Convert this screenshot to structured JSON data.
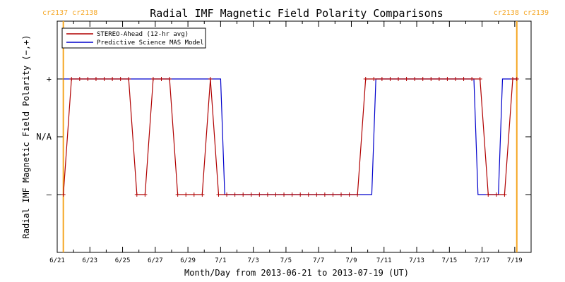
{
  "chart_data": {
    "type": "line",
    "title": "Radial IMF Magnetic Field Polarity Comparisons",
    "xlabel": "Month/Day from 2013-06-21 to 2013-07-19 (UT)",
    "ylabel": "Radial IMF Magnetic Field Polarity (−,+)",
    "xlim": [
      "2013-06-21",
      "2013-07-19"
    ],
    "x_tick_labels": [
      "6/21",
      "6/23",
      "6/25",
      "6/27",
      "6/29",
      "7/1",
      "7/3",
      "7/5",
      "7/7",
      "7/9",
      "7/11",
      "7/13",
      "7/15",
      "7/17",
      "7/19"
    ],
    "y_tick_labels": [
      {
        "value": -2,
        "label": ""
      },
      {
        "value": -1,
        "label": "–"
      },
      {
        "value": 0,
        "label": "N/A"
      },
      {
        "value": 1,
        "label": "+"
      },
      {
        "value": 2,
        "label": ""
      }
    ],
    "ylim": [
      -2,
      2
    ],
    "grid": false,
    "legend": {
      "position": "top-left"
    },
    "carrington_markers": [
      {
        "date": "2013-06-21 09:00",
        "labels": [
          "cr2137",
          "cr2138"
        ],
        "side": "left"
      },
      {
        "date": "2013-07-19 03:00",
        "labels": [
          "cr2138",
          "cr2139"
        ],
        "side": "right"
      }
    ],
    "series": [
      {
        "name": "STEREO-Ahead (12-hr avg)",
        "color": "#b00000",
        "markers": "plus",
        "points": [
          [
            "2013-06-21 09:00",
            -1
          ],
          [
            "2013-06-21 21:00",
            1
          ],
          [
            "2013-06-22 09:00",
            1
          ],
          [
            "2013-06-22 21:00",
            1
          ],
          [
            "2013-06-23 09:00",
            1
          ],
          [
            "2013-06-23 21:00",
            1
          ],
          [
            "2013-06-24 09:00",
            1
          ],
          [
            "2013-06-24 21:00",
            1
          ],
          [
            "2013-06-25 09:00",
            1
          ],
          [
            "2013-06-25 21:00",
            -1
          ],
          [
            "2013-06-26 09:00",
            -1
          ],
          [
            "2013-06-26 21:00",
            1
          ],
          [
            "2013-06-27 09:00",
            1
          ],
          [
            "2013-06-27 21:00",
            1
          ],
          [
            "2013-06-28 09:00",
            -1
          ],
          [
            "2013-06-28 21:00",
            -1
          ],
          [
            "2013-06-29 09:00",
            -1
          ],
          [
            "2013-06-29 21:00",
            -1
          ],
          [
            "2013-06-30 09:00",
            1
          ],
          [
            "2013-06-30 21:00",
            -1
          ],
          [
            "2013-07-01 09:00",
            -1
          ],
          [
            "2013-07-01 21:00",
            -1
          ],
          [
            "2013-07-02 09:00",
            -1
          ],
          [
            "2013-07-02 21:00",
            -1
          ],
          [
            "2013-07-03 09:00",
            -1
          ],
          [
            "2013-07-03 21:00",
            -1
          ],
          [
            "2013-07-04 09:00",
            -1
          ],
          [
            "2013-07-04 21:00",
            -1
          ],
          [
            "2013-07-05 09:00",
            -1
          ],
          [
            "2013-07-05 21:00",
            -1
          ],
          [
            "2013-07-06 09:00",
            -1
          ],
          [
            "2013-07-06 21:00",
            -1
          ],
          [
            "2013-07-07 09:00",
            -1
          ],
          [
            "2013-07-07 21:00",
            -1
          ],
          [
            "2013-07-08 09:00",
            -1
          ],
          [
            "2013-07-08 21:00",
            -1
          ],
          [
            "2013-07-09 09:00",
            -1
          ],
          [
            "2013-07-09 21:00",
            1
          ],
          [
            "2013-07-10 09:00",
            1
          ],
          [
            "2013-07-10 21:00",
            1
          ],
          [
            "2013-07-11 09:00",
            1
          ],
          [
            "2013-07-11 21:00",
            1
          ],
          [
            "2013-07-12 09:00",
            1
          ],
          [
            "2013-07-12 21:00",
            1
          ],
          [
            "2013-07-13 09:00",
            1
          ],
          [
            "2013-07-13 21:00",
            1
          ],
          [
            "2013-07-14 09:00",
            1
          ],
          [
            "2013-07-14 21:00",
            1
          ],
          [
            "2013-07-15 09:00",
            1
          ],
          [
            "2013-07-15 21:00",
            1
          ],
          [
            "2013-07-16 09:00",
            1
          ],
          [
            "2013-07-16 21:00",
            1
          ],
          [
            "2013-07-17 09:00",
            -1
          ],
          [
            "2013-07-17 21:00",
            -1
          ],
          [
            "2013-07-18 09:00",
            -1
          ],
          [
            "2013-07-18 21:00",
            1
          ],
          [
            "2013-07-19 03:00",
            1
          ]
        ]
      },
      {
        "name": "Predictive Science MAS Model",
        "color": "#0000cc",
        "markers": "none",
        "points": [
          [
            "2013-06-21 09:00",
            1
          ],
          [
            "2013-07-01 00:00",
            1
          ],
          [
            "2013-07-01 06:00",
            -1
          ],
          [
            "2013-07-10 06:00",
            -1
          ],
          [
            "2013-07-10 12:00",
            1
          ],
          [
            "2013-07-16 12:00",
            1
          ],
          [
            "2013-07-16 18:00",
            -1
          ],
          [
            "2013-07-18 00:00",
            -1
          ],
          [
            "2013-07-18 06:00",
            1
          ],
          [
            "2013-07-19 03:00",
            1
          ]
        ]
      }
    ]
  }
}
